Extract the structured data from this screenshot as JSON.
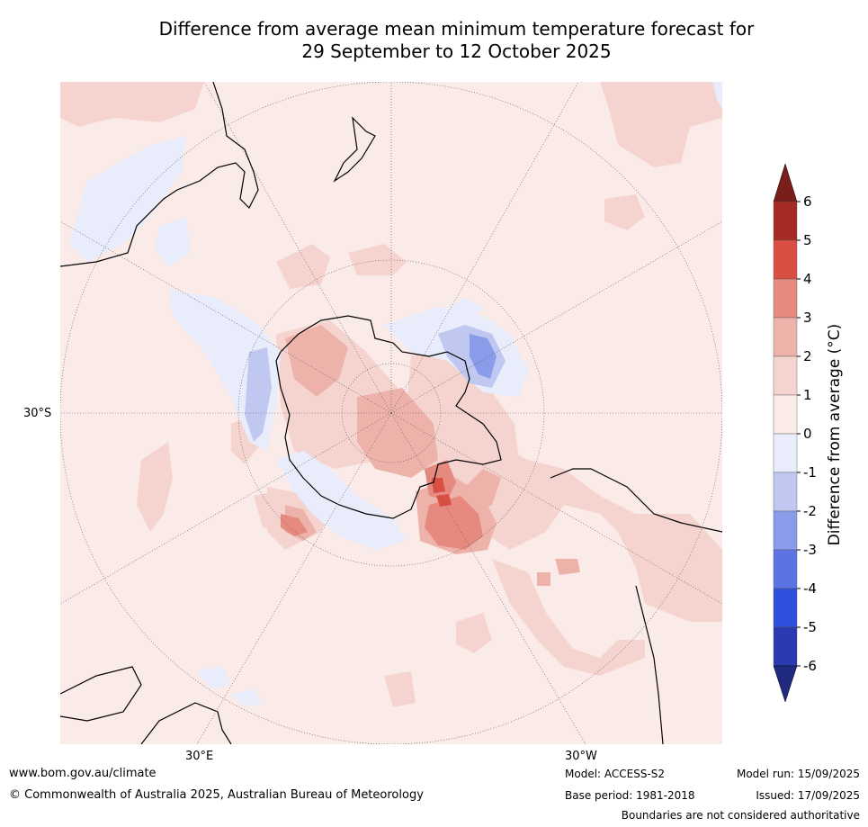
{
  "title": {
    "line1": "Difference from average mean minimum temperature forecast for",
    "line2": "29 September to 12 October 2025"
  },
  "map": {
    "projection": "south polar stereographic",
    "lat_labels": [
      "30°S"
    ],
    "lon_labels": [
      "30°E",
      "30°W"
    ],
    "colors": {
      "background": "#fbebe8",
      "ocean_neutral": "#fbebe8",
      "anom_0_1": "#fbebe8",
      "anom_1_2": "#f5d4d0",
      "anom_2_3": "#edb3ab",
      "anom_3_4": "#e68a80",
      "anom_4_5": "#d94f43",
      "anom_m1_0": "#e8ecfb",
      "anom_m2_m1": "#c0c8f2",
      "anom_m3_m2": "#8a9bea"
    }
  },
  "colorbar": {
    "title": "Difference from average (°C)",
    "ticks": [
      "6",
      "5",
      "4",
      "3",
      "2",
      "1",
      "0",
      "-1",
      "-2",
      "-3",
      "-4",
      "-5",
      "-6"
    ],
    "bins": [
      {
        "color": "#a62a24"
      },
      {
        "color": "#d94f43"
      },
      {
        "color": "#e68a80"
      },
      {
        "color": "#edb3ab"
      },
      {
        "color": "#f5d4d0"
      },
      {
        "color": "#fbebe8"
      },
      {
        "color": "#e8ecfb"
      },
      {
        "color": "#c0c8f2"
      },
      {
        "color": "#8a9bea"
      },
      {
        "color": "#5c73e3"
      },
      {
        "color": "#2f4fdd"
      },
      {
        "color": "#2a3ab0"
      }
    ],
    "extend_max_color": "#7a1e1a",
    "extend_min_color": "#1f2a80"
  },
  "footer": {
    "website": "www.bom.gov.au/climate",
    "copyright": "© Commonwealth of Australia 2025, Australian Bureau of Meteorology",
    "model": "Model: ACCESS-S2",
    "base_period": "Base period: 1981-2018",
    "model_run": "Model run: 15/09/2025",
    "issued": "Issued: 17/09/2025",
    "disclaimer": "Boundaries are not considered authoritative"
  }
}
